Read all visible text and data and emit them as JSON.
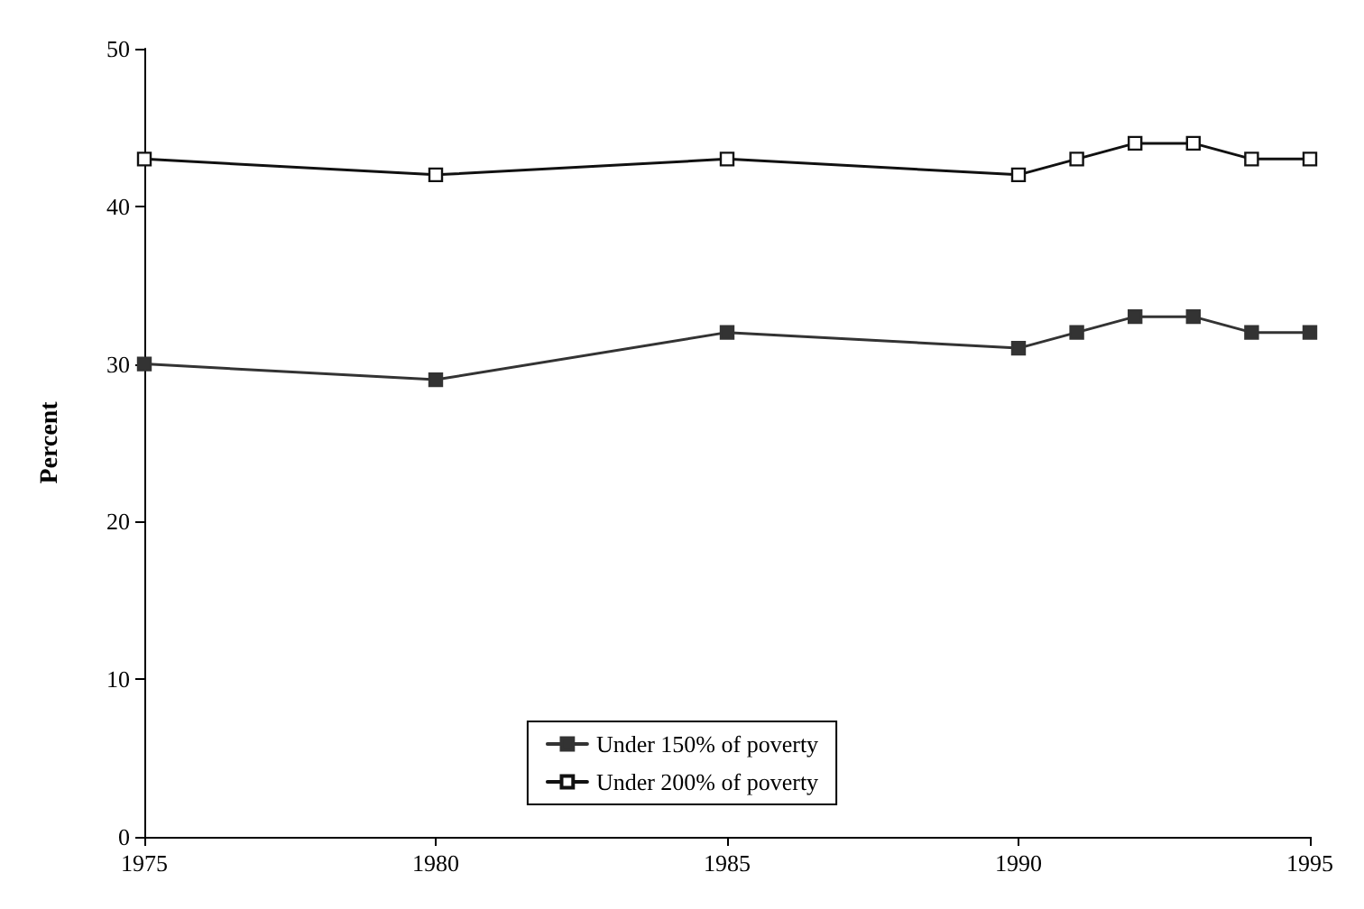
{
  "chart_data": {
    "type": "line",
    "ylabel": "Percent",
    "x": [
      1975,
      1980,
      1985,
      1990,
      1991,
      1992,
      1993,
      1994,
      1995
    ],
    "series": [
      {
        "name": "Under 150% of poverty",
        "color": "#333333",
        "values": [
          30,
          29,
          32,
          31,
          32,
          33,
          33,
          32,
          32
        ]
      },
      {
        "name": "Under 200% of poverty",
        "color": "#111111",
        "values": [
          43,
          42,
          43,
          42,
          43,
          44,
          44,
          43,
          43
        ]
      }
    ],
    "xlim": [
      1975,
      1995
    ],
    "xticks": [
      1975,
      1980,
      1985,
      1990,
      1995
    ],
    "ylim": [
      0,
      50
    ],
    "yticks": [
      0,
      10,
      20,
      30,
      40,
      50
    ],
    "grid": false,
    "legend": "bottom",
    "marker": "square",
    "line_style": "solid"
  }
}
